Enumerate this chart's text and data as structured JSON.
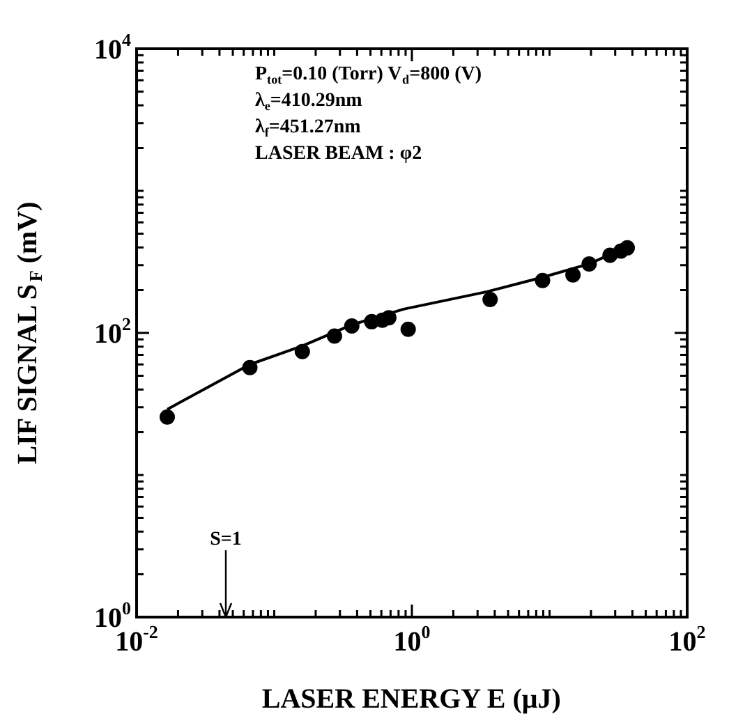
{
  "chart_data": {
    "type": "scatter",
    "xlabel": "LASER ENERGY E (μJ)",
    "ylabel": "LIF SIGNAL S$_{F}$ (mV)",
    "log": "xy",
    "grid": false,
    "legend": false,
    "xlim": [
      0.01,
      100
    ],
    "ylim": [
      1,
      10000
    ],
    "xticks": [
      {
        "value": 0.01,
        "label": "10$^{-2}$"
      },
      {
        "value": 0.02,
        "label": null
      },
      {
        "value": 0.03,
        "label": null
      },
      {
        "value": 0.04,
        "label": null
      },
      {
        "value": 0.05,
        "label": null
      },
      {
        "value": 0.06,
        "label": null
      },
      {
        "value": 0.07,
        "label": null
      },
      {
        "value": 0.08,
        "label": null
      },
      {
        "value": 0.09,
        "label": null
      },
      {
        "value": 0.1,
        "label": null
      },
      {
        "value": 0.2,
        "label": null
      },
      {
        "value": 0.3,
        "label": null
      },
      {
        "value": 0.4,
        "label": null
      },
      {
        "value": 0.5,
        "label": null
      },
      {
        "value": 0.6,
        "label": null
      },
      {
        "value": 0.7,
        "label": null
      },
      {
        "value": 0.8,
        "label": null
      },
      {
        "value": 0.9,
        "label": null
      },
      {
        "value": 1,
        "label": "10$^{0}$"
      },
      {
        "value": 2,
        "label": null
      },
      {
        "value": 3,
        "label": null
      },
      {
        "value": 4,
        "label": null
      },
      {
        "value": 5,
        "label": null
      },
      {
        "value": 6,
        "label": null
      },
      {
        "value": 7,
        "label": null
      },
      {
        "value": 8,
        "label": null
      },
      {
        "value": 9,
        "label": null
      },
      {
        "value": 10,
        "label": null
      },
      {
        "value": 20,
        "label": null
      },
      {
        "value": 30,
        "label": null
      },
      {
        "value": 40,
        "label": null
      },
      {
        "value": 50,
        "label": null
      },
      {
        "value": 60,
        "label": null
      },
      {
        "value": 70,
        "label": null
      },
      {
        "value": 80,
        "label": null
      },
      {
        "value": 90,
        "label": null
      },
      {
        "value": 100,
        "label": "10$^{2}$"
      }
    ],
    "yticks": [
      {
        "value": 1,
        "label": "10$^{0}$"
      },
      {
        "value": 2,
        "label": null
      },
      {
        "value": 3,
        "label": null
      },
      {
        "value": 4,
        "label": null
      },
      {
        "value": 5,
        "label": null
      },
      {
        "value": 6,
        "label": null
      },
      {
        "value": 7,
        "label": null
      },
      {
        "value": 8,
        "label": null
      },
      {
        "value": 9,
        "label": null
      },
      {
        "value": 10,
        "label": null
      },
      {
        "value": 20,
        "label": null
      },
      {
        "value": 30,
        "label": null
      },
      {
        "value": 40,
        "label": null
      },
      {
        "value": 50,
        "label": null
      },
      {
        "value": 60,
        "label": null
      },
      {
        "value": 70,
        "label": null
      },
      {
        "value": 80,
        "label": null
      },
      {
        "value": 90,
        "label": null
      },
      {
        "value": 100,
        "label": "10$^{2}$"
      },
      {
        "value": 200,
        "label": null
      },
      {
        "value": 300,
        "label": null
      },
      {
        "value": 400,
        "label": null
      },
      {
        "value": 500,
        "label": null
      },
      {
        "value": 600,
        "label": null
      },
      {
        "value": 700,
        "label": null
      },
      {
        "value": 800,
        "label": null
      },
      {
        "value": 900,
        "label": null
      },
      {
        "value": 1000,
        "label": null
      },
      {
        "value": 2000,
        "label": null
      },
      {
        "value": 3000,
        "label": null
      },
      {
        "value": 4000,
        "label": null
      },
      {
        "value": 5000,
        "label": null
      },
      {
        "value": 6000,
        "label": null
      },
      {
        "value": 7000,
        "label": null
      },
      {
        "value": 8000,
        "label": null
      },
      {
        "value": 9000,
        "label": null
      },
      {
        "value": 10000,
        "label": "10$^{4}$"
      }
    ],
    "series": [
      {
        "marker": "circle",
        "color": "#000000",
        "x": [
          0.0167,
          0.0665,
          0.16,
          0.274,
          0.366,
          0.51,
          0.61,
          0.68,
          0.94,
          3.7,
          8.9,
          14.8,
          19.4,
          27.5,
          33,
          36.7
        ],
        "values": [
          25.6,
          57,
          74,
          95,
          112,
          120,
          123,
          128,
          106,
          172,
          234,
          256,
          306,
          352,
          377,
          397
        ]
      },
      {
        "type": "line",
        "marker": "none",
        "line_style": "solid",
        "color": "#000000",
        "x": [
          0.0167,
          0.0665,
          0.16,
          0.366,
          0.87,
          3.5,
          8.85,
          19.4,
          36.7
        ],
        "values": [
          29,
          60,
          81,
          114,
          147,
          195,
          246,
          306,
          404
        ]
      }
    ],
    "annotations": [
      "P$_{tot}$=0.10 (Torr) V$_{d}$=800 (V)",
      "λ$_{e}$=410.29nm",
      "λ$_{f}$=451.27nm",
      "LASER BEAM : φ2",
      "S=1"
    ]
  }
}
